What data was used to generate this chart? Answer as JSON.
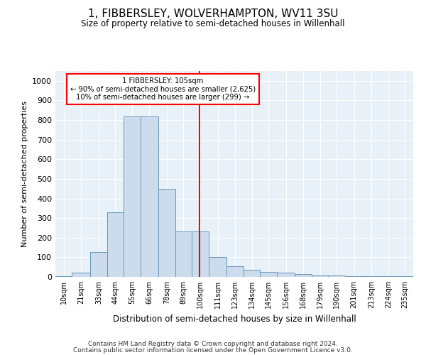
{
  "title": "1, FIBBERSLEY, WOLVERHAMPTON, WV11 3SU",
  "subtitle": "Size of property relative to semi-detached houses in Willenhall",
  "xlabel": "Distribution of semi-detached houses by size in Willenhall",
  "ylabel": "Number of semi-detached properties",
  "footer_line1": "Contains HM Land Registry data © Crown copyright and database right 2024.",
  "footer_line2": "Contains public sector information licensed under the Open Government Licence v3.0.",
  "annotation_title": "1 FIBBERSLEY: 105sqm",
  "annotation_line1": "← 90% of semi-detached houses are smaller (2,625)",
  "annotation_line2": "10% of semi-detached houses are larger (299) →",
  "subject_size": 105,
  "bar_color": "#ccdcec",
  "bar_edge_color": "#6699bb",
  "vline_color": "red",
  "annotation_box_color": "red",
  "bg_color": "#e8f0f8",
  "categories": [
    "10sqm",
    "21sqm",
    "33sqm",
    "44sqm",
    "55sqm",
    "66sqm",
    "78sqm",
    "89sqm",
    "100sqm",
    "111sqm",
    "123sqm",
    "134sqm",
    "145sqm",
    "156sqm",
    "168sqm",
    "179sqm",
    "190sqm",
    "201sqm",
    "213sqm",
    "224sqm",
    "235sqm"
  ],
  "bin_edges": [
    10,
    21,
    33,
    44,
    55,
    66,
    78,
    89,
    100,
    111,
    123,
    134,
    145,
    156,
    168,
    179,
    190,
    201,
    213,
    224,
    235,
    246
  ],
  "bar_heights": [
    5,
    20,
    125,
    330,
    820,
    820,
    450,
    230,
    230,
    100,
    55,
    35,
    25,
    20,
    15,
    8,
    8,
    5,
    3,
    3,
    5
  ],
  "ylim": [
    0,
    1050
  ],
  "yticks": [
    0,
    100,
    200,
    300,
    400,
    500,
    600,
    700,
    800,
    900,
    1000
  ]
}
